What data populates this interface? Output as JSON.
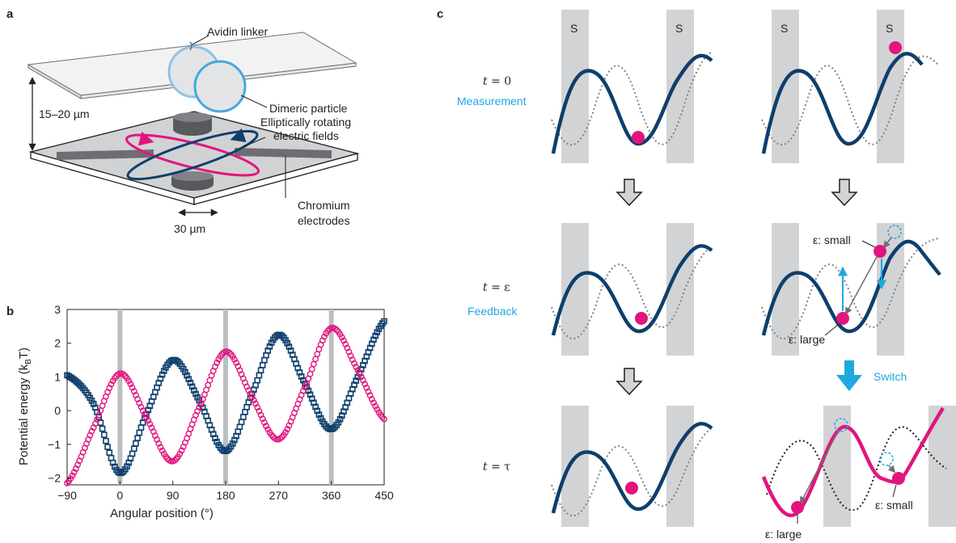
{
  "figure": {
    "panel_a": {
      "letter": "a",
      "avidin_linker": "Avidin linker",
      "dimeric_particle": "Dimeric particle",
      "gap": "15–20 µm",
      "fields_line1": "Elliptically rotating",
      "fields_line2": "electric fields",
      "electrodes_line1": "Chromium",
      "electrodes_line2": "electrodes",
      "width": "30 µm"
    },
    "panel_b": {
      "letter": "b",
      "ylabel": "Potential energy (k",
      "ylabel_sub": "B",
      "ylabel_end": "T)",
      "xlabel": "Angular position (°)"
    },
    "panel_c": {
      "letter": "c",
      "t0": "t",
      "t0_rest": " = 0",
      "measurement": "Measurement",
      "teps": "t",
      "teps_rest": " = ε",
      "feedback": "Feedback",
      "ttau": "t",
      "ttau_rest": " = τ",
      "switch": "Switch",
      "s_label": "S",
      "eps_small": "ε: small",
      "eps_large": "ε: large"
    }
  },
  "colors": {
    "navy": "#0d3f6b",
    "magenta": "#e2157e",
    "cyan": "#1fa8e0",
    "grey_band": "#d2d3d5"
  },
  "chart_data": {
    "type": "scatter",
    "xlabel": "Angular position (°)",
    "ylabel": "Potential energy (kBT)",
    "xlim": [
      -90,
      450
    ],
    "ylim": [
      -2.2,
      3
    ],
    "xticks": [
      -90,
      0,
      90,
      180,
      270,
      360,
      450
    ],
    "yticks": [
      -2,
      -1,
      0,
      1,
      2,
      3
    ],
    "vertical_markers": [
      0,
      180,
      360
    ],
    "series": [
      {
        "color": "#0d3f6b",
        "marker": "square",
        "x": [
          -90,
          -45,
          0,
          45,
          90,
          135,
          180,
          225,
          270,
          315,
          360,
          405,
          450
        ],
        "y": [
          1.05,
          0.2,
          -1.85,
          -0.1,
          1.5,
          0.3,
          -1.2,
          0.5,
          2.25,
          0.8,
          -0.55,
          1.0,
          2.65
        ]
      },
      {
        "color": "#e2157e",
        "marker": "circle",
        "x": [
          -90,
          -45,
          0,
          45,
          90,
          135,
          180,
          225,
          270,
          315,
          360,
          405,
          450
        ],
        "y": [
          -2.15,
          -0.5,
          1.1,
          -0.2,
          -1.5,
          0.1,
          1.75,
          0.4,
          -0.85,
          0.7,
          2.45,
          1.2,
          -0.25
        ]
      }
    ]
  }
}
